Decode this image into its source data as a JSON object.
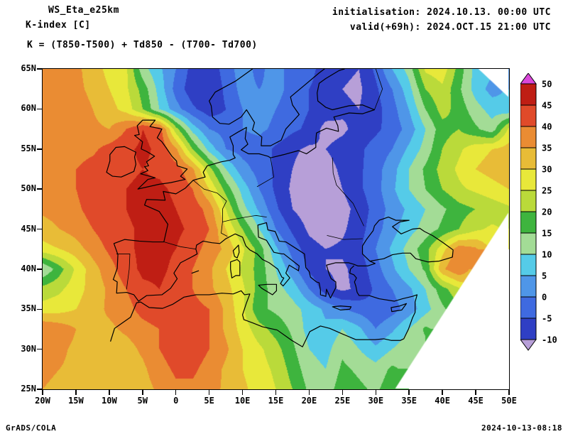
{
  "header": {
    "title": "WS_Eta_e25km",
    "subtitle": "K-index [C]",
    "init_line": "initialisation: 2024.10.13. 00:00 UTC",
    "valid_line": "valid(+69h): 2024.OCT.15 21:00 UTC",
    "formula": "K = (T850-T500) + Td850 - (T700- Td700)"
  },
  "footer": {
    "left": "GrADS/COLA",
    "right": "2024-10-13-08:18"
  },
  "axes": {
    "lat_ticks": [
      "65N",
      "60N",
      "55N",
      "50N",
      "45N",
      "40N",
      "35N",
      "30N",
      "25N"
    ],
    "lon_ticks": [
      "20W",
      "15W",
      "10W",
      "5W",
      "0",
      "5E",
      "10E",
      "15E",
      "20E",
      "25E",
      "30E",
      "35E",
      "40E",
      "45E",
      "50E"
    ]
  },
  "colorbar": {
    "labels_top_to_bottom": [
      "50",
      "45",
      "40",
      "35",
      "30",
      "25",
      "20",
      "15",
      "10",
      "5",
      "0",
      "-5",
      "-10"
    ]
  },
  "chart_data": {
    "type": "heatmap",
    "title": "K-index [C]",
    "variable": "K-index",
    "units": "C",
    "lon_range": [
      -20,
      50
    ],
    "lat_range": [
      25,
      65
    ],
    "grid_lon_start": -20,
    "grid_lon_step": 2.5,
    "grid_lat_start": 65,
    "grid_lat_step": -2.5,
    "levels": [
      -10,
      -5,
      0,
      5,
      10,
      15,
      20,
      25,
      30,
      35,
      40,
      45,
      50
    ],
    "palette": [
      "#b79fd8",
      "#2f3fc4",
      "#3f6ae0",
      "#4f96e8",
      "#55cbe8",
      "#a3dc96",
      "#3eb43e",
      "#bada3a",
      "#e8e83a",
      "#e8bc37",
      "#ea8c33",
      "#e04a2a",
      "#bf1e14",
      "#da48da"
    ],
    "missing_polygons_lonlat": [
      [
        [
          33,
          25
        ],
        [
          50,
          47
        ],
        [
          50,
          25
        ]
      ],
      [
        [
          45.5,
          65
        ],
        [
          50,
          65
        ],
        [
          50,
          61.5
        ]
      ]
    ],
    "grid": [
      [
        37,
        37,
        36,
        33,
        28,
        26,
        12,
        6,
        0,
        -7,
        -8,
        -3,
        3,
        -2,
        4,
        -4,
        -3,
        -8,
        -9,
        -10,
        -4,
        5,
        12,
        26,
        28,
        18,
        8,
        null,
        null
      ],
      [
        37,
        37,
        36,
        34,
        30,
        26,
        18,
        8,
        -2,
        -8,
        -9,
        -4,
        2,
        0,
        2,
        -2,
        -5,
        -8,
        -10,
        -11,
        -6,
        0,
        8,
        20,
        24,
        16,
        8,
        3,
        null
      ],
      [
        37,
        38,
        37,
        35,
        32,
        28,
        20,
        10,
        2,
        -4,
        -8,
        -5,
        0,
        2,
        0,
        -3,
        -5,
        -7,
        -9,
        -10,
        -7,
        -2,
        5,
        15,
        22,
        18,
        12,
        8,
        6
      ],
      [
        38,
        38,
        37,
        36,
        35,
        40,
        45,
        43,
        22,
        8,
        0,
        -2,
        0,
        1,
        -1,
        -4,
        -6,
        -12,
        -11,
        -8,
        -6,
        -3,
        2,
        10,
        18,
        20,
        16,
        12,
        26
      ],
      [
        38,
        38,
        38,
        39,
        42,
        44,
        46,
        44,
        36,
        20,
        8,
        0,
        -2,
        -2,
        -6,
        -9,
        -11,
        -10,
        -8,
        -6,
        -3,
        0,
        6,
        12,
        20,
        24,
        28,
        30,
        32
      ],
      [
        38,
        39,
        40,
        42,
        43,
        44,
        45,
        44,
        42,
        36,
        22,
        10,
        2,
        -2,
        -6,
        -10,
        -13,
        -12,
        -9,
        -6,
        -2,
        3,
        10,
        16,
        22,
        26,
        30,
        32,
        34
      ],
      [
        36,
        38,
        40,
        43,
        44,
        45,
        46,
        46,
        44,
        40,
        30,
        18,
        8,
        0,
        -6,
        -11,
        -13,
        -13,
        -10,
        -6,
        -2,
        4,
        10,
        15,
        20,
        24,
        26,
        28,
        30
      ],
      [
        36,
        37,
        39,
        42,
        43,
        45,
        47,
        47,
        45,
        43,
        38,
        25,
        12,
        4,
        -4,
        -10,
        -13,
        -13,
        -12,
        -8,
        -3,
        2,
        6,
        10,
        14,
        18,
        20,
        22,
        24
      ],
      [
        33,
        35,
        37,
        40,
        43,
        44,
        46,
        47,
        46,
        44,
        40,
        30,
        20,
        10,
        0,
        -6,
        -11,
        -13,
        -11,
        -7,
        -2,
        3,
        8,
        12,
        16,
        20,
        24,
        26,
        null
      ],
      [
        28,
        30,
        33,
        37,
        41,
        44,
        46,
        46,
        45,
        42,
        38,
        34,
        26,
        18,
        6,
        -2,
        -8,
        -10,
        -9,
        -6,
        0,
        6,
        12,
        18,
        28,
        38,
        36,
        null,
        null
      ],
      [
        10,
        18,
        26,
        33,
        38,
        43,
        46,
        46,
        44,
        40,
        36,
        30,
        24,
        18,
        10,
        2,
        -6,
        -10,
        -11,
        -8,
        -2,
        4,
        10,
        16,
        34,
        40,
        null,
        null,
        null
      ],
      [
        22,
        24,
        28,
        32,
        36,
        40,
        44,
        45,
        43,
        40,
        36,
        32,
        26,
        18,
        12,
        8,
        0,
        -8,
        -11,
        -9,
        -4,
        0,
        4,
        10,
        18,
        24,
        null,
        null,
        null
      ],
      [
        27,
        28,
        30,
        33,
        36,
        38,
        42,
        44,
        44,
        42,
        40,
        34,
        26,
        16,
        14,
        12,
        8,
        4,
        0,
        -2,
        -4,
        -2,
        2,
        8,
        14,
        null,
        null,
        null,
        null
      ],
      [
        40,
        38,
        35,
        34,
        34,
        36,
        38,
        40,
        42,
        42,
        40,
        34,
        28,
        22,
        18,
        14,
        8,
        6,
        10,
        6,
        0,
        4,
        10,
        16,
        null,
        null,
        null,
        null,
        null
      ],
      [
        38,
        36,
        34,
        33,
        32,
        33,
        36,
        40,
        43,
        43,
        40,
        36,
        30,
        26,
        22,
        16,
        10,
        8,
        14,
        10,
        6,
        10,
        14,
        null,
        null,
        null,
        null,
        null,
        null
      ],
      [
        36,
        35,
        34,
        33,
        32,
        32,
        34,
        38,
        41,
        41,
        38,
        34,
        30,
        27,
        24,
        18,
        12,
        10,
        16,
        14,
        12,
        16,
        null,
        null,
        null,
        null,
        null,
        null,
        null
      ],
      [
        35,
        34,
        33,
        32,
        31,
        31,
        33,
        36,
        39,
        39,
        37,
        34,
        31,
        28,
        25,
        20,
        14,
        12,
        18,
        16,
        14,
        18,
        null,
        null,
        null,
        null,
        null,
        null,
        null
      ]
    ]
  }
}
